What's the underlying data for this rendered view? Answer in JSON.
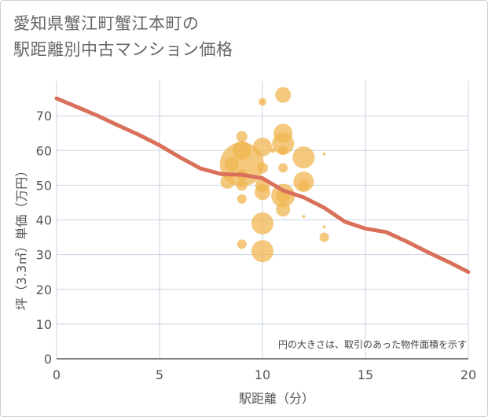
{
  "title": {
    "line1": "愛知県蟹江町蟹江本町の",
    "line2": "駅距離別中古マンション価格"
  },
  "chart_data": {
    "type": "scatter",
    "title": "愛知県蟹江町蟹江本町の駅距離別中古マンション価格",
    "xlabel": "駅距離（分）",
    "ylabel": "坪（3.3㎡）単価（万円）",
    "xlim": [
      0,
      20
    ],
    "ylim": [
      0,
      80
    ],
    "x_ticks": [
      0,
      5,
      10,
      15,
      20
    ],
    "y_ticks": [
      0,
      10,
      20,
      30,
      40,
      50,
      60,
      70
    ],
    "grid": true,
    "note": "円の大きさは、取引のあった物件面積を示す",
    "colors": {
      "bubble": "#f0b44c",
      "trend": "#d9705a",
      "grid": "#c9d3e3",
      "axis": "#555555"
    },
    "points": [
      {
        "x": 9,
        "y": 56,
        "size": 28
      },
      {
        "x": 9,
        "y": 60,
        "size": 12
      },
      {
        "x": 8.5,
        "y": 56,
        "size": 9
      },
      {
        "x": 8.3,
        "y": 51,
        "size": 9
      },
      {
        "x": 9,
        "y": 64,
        "size": 7
      },
      {
        "x": 9,
        "y": 53,
        "size": 7
      },
      {
        "x": 9,
        "y": 50,
        "size": 7
      },
      {
        "x": 9,
        "y": 46,
        "size": 6
      },
      {
        "x": 9,
        "y": 33,
        "size": 6
      },
      {
        "x": 10,
        "y": 74,
        "size": 5
      },
      {
        "x": 10,
        "y": 74,
        "size": 2
      },
      {
        "x": 10,
        "y": 61,
        "size": 12
      },
      {
        "x": 10,
        "y": 55,
        "size": 7
      },
      {
        "x": 10,
        "y": 50,
        "size": 9
      },
      {
        "x": 10,
        "y": 48,
        "size": 10
      },
      {
        "x": 10,
        "y": 39,
        "size": 14
      },
      {
        "x": 10,
        "y": 31,
        "size": 14
      },
      {
        "x": 10.5,
        "y": 60,
        "size": 3
      },
      {
        "x": 11,
        "y": 76,
        "size": 10
      },
      {
        "x": 11,
        "y": 65,
        "size": 12
      },
      {
        "x": 11,
        "y": 62,
        "size": 14
      },
      {
        "x": 11,
        "y": 60,
        "size": 6
      },
      {
        "x": 11,
        "y": 55,
        "size": 6
      },
      {
        "x": 11,
        "y": 47,
        "size": 15
      },
      {
        "x": 11,
        "y": 47,
        "size": 9
      },
      {
        "x": 11,
        "y": 43,
        "size": 9
      },
      {
        "x": 12,
        "y": 58,
        "size": 14
      },
      {
        "x": 12,
        "y": 51,
        "size": 13
      },
      {
        "x": 12,
        "y": 50,
        "size": 7
      },
      {
        "x": 12,
        "y": 41,
        "size": 2
      },
      {
        "x": 13,
        "y": 59,
        "size": 2
      },
      {
        "x": 13,
        "y": 38,
        "size": 2
      },
      {
        "x": 13,
        "y": 35,
        "size": 6
      }
    ],
    "trend": {
      "x": [
        0,
        1,
        2,
        3,
        4,
        5,
        6,
        7,
        8,
        9,
        10,
        11,
        12,
        13,
        14,
        15,
        16,
        17,
        18,
        19,
        20
      ],
      "y": [
        75,
        72.5,
        70,
        67.2,
        64.5,
        61.5,
        58,
        54.8,
        53.2,
        53,
        52,
        48.5,
        46.5,
        43.5,
        39.5,
        37.5,
        36.5,
        33.8,
        30.8,
        28,
        25
      ]
    }
  }
}
